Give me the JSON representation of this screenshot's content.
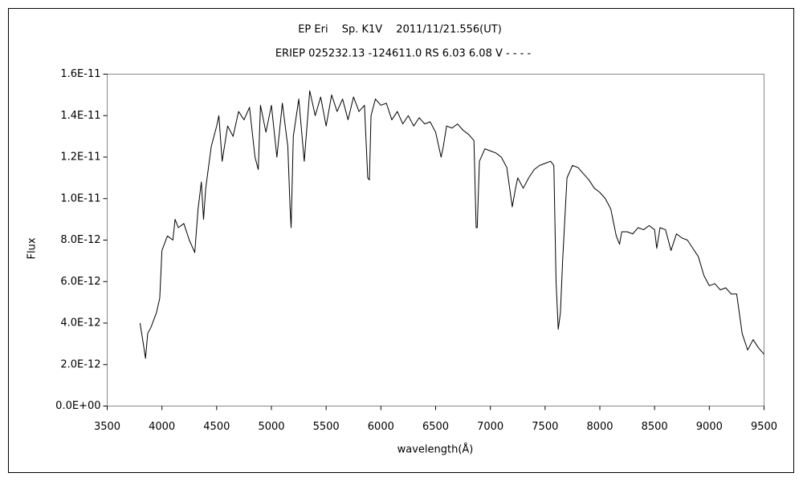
{
  "chart_data": {
    "type": "line",
    "title": "EP Eri　 Sp. K1V　 2011/11/21.556(UT)",
    "subtitle": "ERIEP 025232.13 -124611.0 RS 6.03 6.08 V - - - -",
    "x_label": "wavelength(Å)",
    "y_label": "Flux",
    "xlim": [
      3500,
      9500
    ],
    "xticks": [
      3500,
      4000,
      4500,
      5000,
      5500,
      6000,
      6500,
      7000,
      7500,
      8000,
      8500,
      9000,
      9500
    ],
    "ylim": [
      0,
      1.6e-11
    ],
    "yticks": [
      {
        "value": 0,
        "label": "0.0E+00"
      },
      {
        "value": 2e-12,
        "label": "2.0E-12"
      },
      {
        "value": 4e-12,
        "label": "4.0E-12"
      },
      {
        "value": 6e-12,
        "label": "6.0E-12"
      },
      {
        "value": 8e-12,
        "label": "8.0E-12"
      },
      {
        "value": 1e-11,
        "label": "1.0E-11"
      },
      {
        "value": 1.2e-11,
        "label": "1.2E-11"
      },
      {
        "value": 1.4e-11,
        "label": "1.4E-11"
      },
      {
        "value": 1.6e-11,
        "label": "1.6E-11"
      }
    ],
    "grid": false,
    "color": "#000000",
    "x": [
      3800,
      3830,
      3850,
      3870,
      3900,
      3950,
      3980,
      4000,
      4050,
      4100,
      4120,
      4150,
      4200,
      4250,
      4300,
      4330,
      4360,
      4380,
      4400,
      4450,
      4500,
      4520,
      4550,
      4600,
      4650,
      4700,
      4750,
      4800,
      4850,
      4880,
      4900,
      4950,
      5000,
      5050,
      5100,
      5150,
      5170,
      5180,
      5200,
      5250,
      5300,
      5350,
      5400,
      5450,
      5500,
      5550,
      5600,
      5650,
      5700,
      5750,
      5800,
      5850,
      5880,
      5895,
      5910,
      5950,
      6000,
      6050,
      6100,
      6150,
      6200,
      6250,
      6300,
      6350,
      6400,
      6450,
      6500,
      6550,
      6570,
      6600,
      6650,
      6700,
      6750,
      6800,
      6850,
      6870,
      6880,
      6900,
      6950,
      7000,
      7050,
      7100,
      7150,
      7200,
      7230,
      7250,
      7300,
      7350,
      7400,
      7450,
      7500,
      7550,
      7580,
      7600,
      7620,
      7640,
      7660,
      7700,
      7750,
      7800,
      7850,
      7900,
      7950,
      8000,
      8050,
      8100,
      8150,
      8180,
      8200,
      8250,
      8300,
      8350,
      8400,
      8450,
      8500,
      8520,
      8550,
      8600,
      8650,
      8700,
      8750,
      8800,
      8850,
      8900,
      8950,
      9000,
      9050,
      9100,
      9150,
      9200,
      9250,
      9300,
      9350,
      9400,
      9450,
      9500
    ],
    "values": [
      4e-12,
      3e-12,
      2.3e-12,
      3.5e-12,
      3.8e-12,
      4.5e-12,
      5.2e-12,
      7.5e-12,
      8.2e-12,
      8e-12,
      9e-12,
      8.6e-12,
      8.8e-12,
      8e-12,
      7.4e-12,
      9.5e-12,
      1.08e-11,
      9e-12,
      1.05e-11,
      1.25e-11,
      1.35e-11,
      1.4e-11,
      1.18e-11,
      1.35e-11,
      1.3e-11,
      1.42e-11,
      1.38e-11,
      1.44e-11,
      1.2e-11,
      1.14e-11,
      1.45e-11,
      1.32e-11,
      1.45e-11,
      1.2e-11,
      1.46e-11,
      1.25e-11,
      9.6e-12,
      8.6e-12,
      1.3e-11,
      1.48e-11,
      1.18e-11,
      1.52e-11,
      1.4e-11,
      1.49e-11,
      1.35e-11,
      1.5e-11,
      1.42e-11,
      1.48e-11,
      1.38e-11,
      1.49e-11,
      1.42e-11,
      1.45e-11,
      1.1e-11,
      1.09e-11,
      1.4e-11,
      1.48e-11,
      1.45e-11,
      1.46e-11,
      1.38e-11,
      1.42e-11,
      1.36e-11,
      1.4e-11,
      1.35e-11,
      1.39e-11,
      1.36e-11,
      1.37e-11,
      1.32e-11,
      1.2e-11,
      1.25e-11,
      1.35e-11,
      1.34e-11,
      1.36e-11,
      1.33e-11,
      1.31e-11,
      1.28e-11,
      8.6e-12,
      8.6e-12,
      1.18e-11,
      1.24e-11,
      1.23e-11,
      1.22e-11,
      1.2e-11,
      1.15e-11,
      9.6e-12,
      1.05e-11,
      1.1e-11,
      1.05e-11,
      1.1e-11,
      1.14e-11,
      1.16e-11,
      1.17e-11,
      1.18e-11,
      1.16e-11,
      6e-12,
      3.7e-12,
      4.5e-12,
      7e-12,
      1.1e-11,
      1.16e-11,
      1.15e-11,
      1.12e-11,
      1.09e-11,
      1.05e-11,
      1.03e-11,
      1e-11,
      9.5e-12,
      8.2e-12,
      7.8e-12,
      8.4e-12,
      8.4e-12,
      8.3e-12,
      8.6e-12,
      8.5e-12,
      8.7e-12,
      8.5e-12,
      7.6e-12,
      8.6e-12,
      8.5e-12,
      7.5e-12,
      8.3e-12,
      8.1e-12,
      8e-12,
      7.6e-12,
      7.2e-12,
      6.3e-12,
      5.8e-12,
      5.9e-12,
      5.6e-12,
      5.7e-12,
      5.4e-12,
      5.4e-12,
      3.5e-12,
      2.7e-12,
      3.2e-12,
      2.8e-12,
      2.5e-12
    ]
  }
}
